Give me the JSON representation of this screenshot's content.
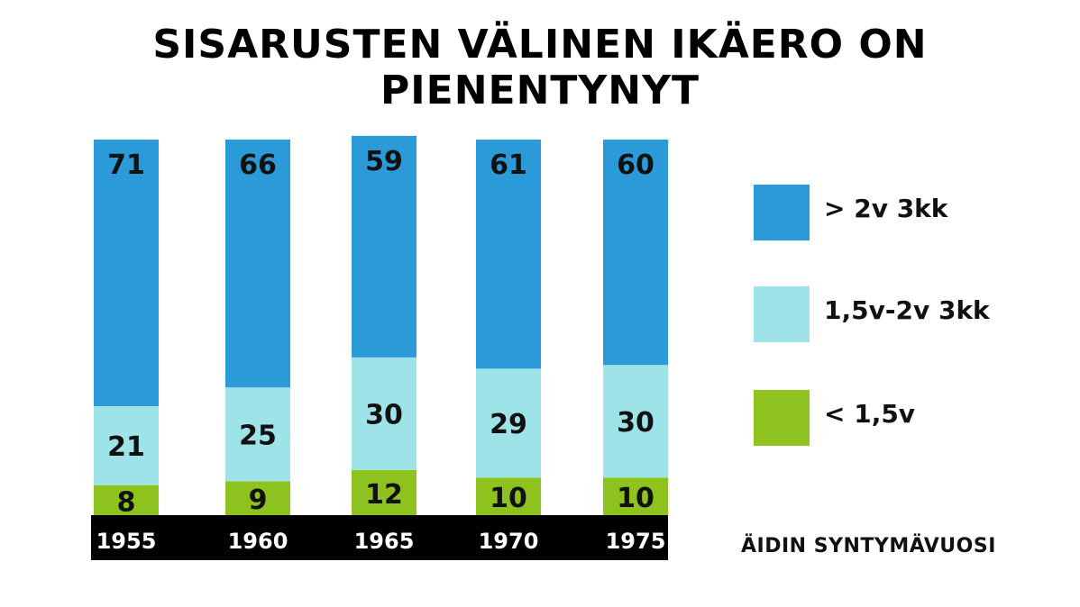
{
  "chart_data": {
    "type": "bar",
    "stacked": true,
    "title": "SISARUSTEN VÄLINEN IKÄERO ON PIENENTYNYT",
    "xlabel": "ÄIDIN SYNTYMÄVUOSI",
    "ylabel": "",
    "categories": [
      "1955",
      "1960",
      "1965",
      "1970",
      "1975"
    ],
    "series": [
      {
        "name": "< 1,5v",
        "color": "#8dc21f",
        "values": [
          8,
          9,
          12,
          10,
          10
        ]
      },
      {
        "name": "1,5v-2v 3kk",
        "color": "#9ee3e8",
        "values": [
          21,
          25,
          30,
          29,
          30
        ]
      },
      {
        "name": "> 2v 3kk",
        "color": "#2a9ad9",
        "values": [
          71,
          66,
          59,
          61,
          60
        ]
      }
    ],
    "ylim": [
      0,
      100
    ],
    "grid": false,
    "legend": "right"
  },
  "legend_items": [
    {
      "label": "> 2v 3kk",
      "color": "#2a9ad9"
    },
    {
      "label": "1,5v-2v 3kk",
      "color": "#9ee3e8"
    },
    {
      "label": "< 1,5v",
      "color": "#8dc21f"
    }
  ],
  "axis_bar_color": "#000000"
}
